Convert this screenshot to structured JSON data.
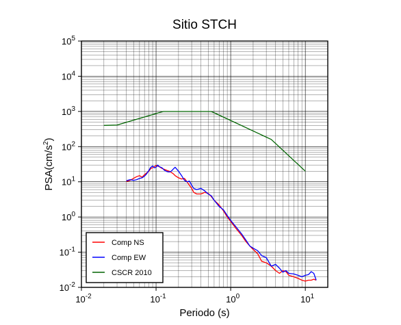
{
  "chart_data": {
    "type": "line",
    "title": "Sitio STCH",
    "xlabel": "Periodo (s)",
    "ylabel_base": "PSA(cm/s",
    "ylabel_sup": "2",
    "ylabel_end": ")",
    "x_scale": "log",
    "y_scale": "log",
    "xlim": [
      0.01,
      20
    ],
    "ylim": [
      0.01,
      100000
    ],
    "grid": true,
    "legend_position": "bottom-left",
    "x_ticks": [
      {
        "value": 0.01,
        "base": "10",
        "exp": "-2"
      },
      {
        "value": 0.1,
        "base": "10",
        "exp": "-1"
      },
      {
        "value": 1,
        "base": "10",
        "exp": "0"
      },
      {
        "value": 10,
        "base": "10",
        "exp": "1"
      }
    ],
    "y_ticks": [
      {
        "value": 0.01,
        "base": "10",
        "exp": "-2"
      },
      {
        "value": 0.1,
        "base": "10",
        "exp": "-1"
      },
      {
        "value": 1,
        "base": "10",
        "exp": "0"
      },
      {
        "value": 10,
        "base": "10",
        "exp": "1"
      },
      {
        "value": 100,
        "base": "10",
        "exp": "2"
      },
      {
        "value": 1000,
        "base": "10",
        "exp": "3"
      },
      {
        "value": 10000,
        "base": "10",
        "exp": "4"
      },
      {
        "value": 100000,
        "base": "10",
        "exp": "5"
      }
    ],
    "series": [
      {
        "name": "Comp NS",
        "color": "#ff0000",
        "x": [
          0.04,
          0.045,
          0.05,
          0.055,
          0.06,
          0.065,
          0.07,
          0.075,
          0.08,
          0.085,
          0.09,
          0.095,
          0.1,
          0.105,
          0.11,
          0.12,
          0.13,
          0.14,
          0.15,
          0.16,
          0.17,
          0.18,
          0.2,
          0.22,
          0.24,
          0.26,
          0.28,
          0.3,
          0.32,
          0.35,
          0.4,
          0.45,
          0.5,
          0.55,
          0.6,
          0.7,
          0.8,
          0.9,
          1.0,
          1.2,
          1.4,
          1.6,
          1.8,
          2.0,
          2.3,
          2.6,
          3.0,
          3.5,
          4.0,
          4.5,
          5.0,
          5.5,
          6.0,
          7.0,
          8.0,
          9.0,
          10.0,
          11.0,
          12.0,
          13.0,
          14.0
        ],
        "y": [
          10.2,
          11.0,
          12.5,
          14.0,
          15.0,
          13.5,
          16.0,
          18.0,
          20.0,
          24.0,
          25.0,
          27.0,
          29.0,
          28.0,
          27.0,
          24.0,
          22.5,
          21.0,
          20.0,
          18.5,
          17.0,
          15.0,
          13.0,
          12.0,
          12.5,
          10.0,
          8.0,
          6.5,
          5.0,
          4.5,
          4.5,
          5.0,
          4.7,
          3.8,
          3.0,
          2.2,
          1.5,
          1.0,
          0.75,
          0.45,
          0.3,
          0.2,
          0.15,
          0.12,
          0.09,
          0.055,
          0.05,
          0.04,
          0.03,
          0.025,
          0.03,
          0.028,
          0.022,
          0.02,
          0.018,
          0.016,
          0.015,
          0.016,
          0.016,
          0.017,
          0.016
        ]
      },
      {
        "name": "Comp EW",
        "color": "#0000ff",
        "x": [
          0.04,
          0.045,
          0.05,
          0.055,
          0.06,
          0.065,
          0.07,
          0.075,
          0.08,
          0.085,
          0.09,
          0.095,
          0.1,
          0.105,
          0.11,
          0.12,
          0.13,
          0.14,
          0.15,
          0.16,
          0.17,
          0.18,
          0.2,
          0.22,
          0.24,
          0.26,
          0.28,
          0.3,
          0.32,
          0.35,
          0.4,
          0.45,
          0.5,
          0.55,
          0.6,
          0.7,
          0.8,
          0.9,
          1.0,
          1.2,
          1.4,
          1.6,
          1.8,
          2.0,
          2.3,
          2.6,
          3.0,
          3.5,
          4.0,
          4.5,
          5.0,
          5.5,
          6.0,
          7.0,
          8.0,
          9.0,
          10.0,
          11.0,
          12.0,
          13.0,
          14.0
        ],
        "y": [
          10.8,
          11.5,
          11.0,
          11.5,
          12.5,
          13.0,
          14.5,
          17.0,
          21.0,
          26.0,
          28.0,
          25.0,
          26.0,
          30.0,
          27.0,
          25.0,
          21.0,
          19.5,
          19.0,
          20.0,
          23.0,
          26.0,
          20.0,
          15.0,
          11.0,
          10.0,
          10.5,
          8.0,
          6.5,
          6.0,
          6.5,
          5.5,
          4.5,
          4.0,
          3.0,
          2.0,
          1.6,
          1.1,
          0.8,
          0.5,
          0.33,
          0.22,
          0.15,
          0.13,
          0.11,
          0.08,
          0.07,
          0.04,
          0.045,
          0.035,
          0.027,
          0.03,
          0.025,
          0.024,
          0.022,
          0.02,
          0.022,
          0.023,
          0.028,
          0.025,
          0.016
        ]
      },
      {
        "name": "CSCR 2010",
        "color": "#006400",
        "x": [
          0.02,
          0.03,
          0.125,
          0.55,
          3.5,
          10.0
        ],
        "y": [
          400,
          410,
          1000,
          1000,
          160,
          20
        ]
      }
    ]
  }
}
